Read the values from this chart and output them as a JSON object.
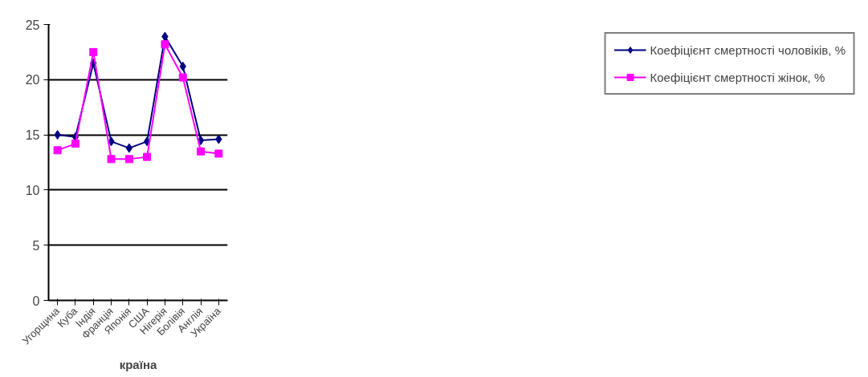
{
  "chart_data": {
    "type": "line",
    "xlabel": "країна",
    "categories": [
      "Угорщина",
      "Куба",
      "Індія",
      "Франція",
      "Японія",
      "США",
      "Нігерія",
      "Болівія",
      "Англія",
      "Україна"
    ],
    "series": [
      {
        "name": "Коефіцієнт смертності чоловіків, %",
        "color": "#000080",
        "marker": "diamond",
        "values": [
          15.0,
          14.8,
          21.5,
          14.4,
          13.8,
          14.4,
          23.9,
          21.2,
          14.5,
          14.6
        ]
      },
      {
        "name": "Коефіцієнт смертності жінок, %",
        "color": "#ff00ff",
        "marker": "square",
        "values": [
          13.6,
          14.2,
          22.5,
          12.8,
          12.8,
          13.0,
          23.2,
          20.2,
          13.5,
          13.3
        ]
      }
    ],
    "ylim": [
      0,
      25
    ],
    "yticks": [
      0,
      5,
      10,
      15,
      20,
      25
    ],
    "grid": "y",
    "legend": "right"
  }
}
